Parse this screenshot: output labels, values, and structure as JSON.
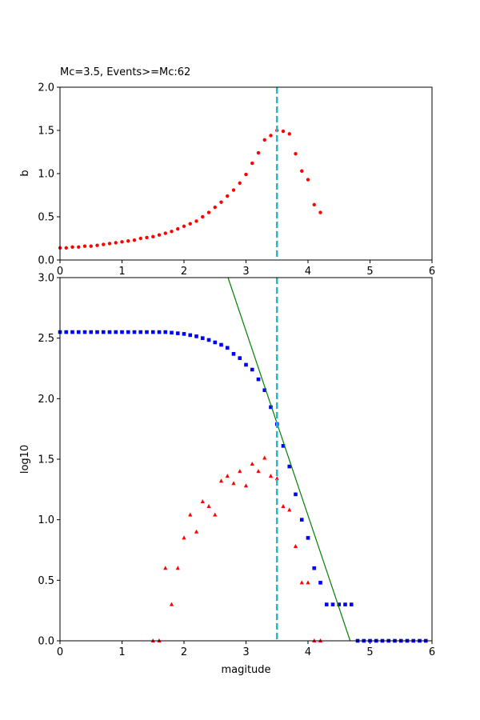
{
  "chart_data": [
    {
      "type": "scatter",
      "title": "Mc=3.5, Events>=Mc:62",
      "xlabel": "",
      "ylabel": "b",
      "xlim": [
        0,
        6
      ],
      "ylim": [
        0,
        2.0
      ],
      "xticks": [
        "0",
        "1",
        "2",
        "3",
        "4",
        "5",
        "6"
      ],
      "yticks": [
        "0.0",
        "0.5",
        "1.0",
        "1.5",
        "2.0"
      ],
      "grid": false,
      "vline": {
        "x": 3.5,
        "color": "#17becf",
        "style": "dashed"
      },
      "series": [
        {
          "color": "#ff0000",
          "marker": "circle",
          "x": [
            0.0,
            0.1,
            0.2,
            0.3,
            0.4,
            0.5,
            0.6,
            0.7,
            0.8,
            0.9,
            1.0,
            1.1,
            1.2,
            1.3,
            1.4,
            1.5,
            1.6,
            1.7,
            1.8,
            1.9,
            2.0,
            2.1,
            2.2,
            2.3,
            2.4,
            2.5,
            2.6,
            2.7,
            2.8,
            2.9,
            3.0,
            3.1,
            3.2,
            3.3,
            3.4,
            3.5,
            3.6,
            3.7,
            3.8,
            3.9,
            4.0,
            4.1,
            4.2
          ],
          "y": [
            0.14,
            0.14,
            0.15,
            0.15,
            0.16,
            0.16,
            0.17,
            0.18,
            0.19,
            0.2,
            0.21,
            0.22,
            0.23,
            0.25,
            0.26,
            0.27,
            0.29,
            0.31,
            0.33,
            0.36,
            0.39,
            0.42,
            0.45,
            0.5,
            0.55,
            0.61,
            0.67,
            0.74,
            0.81,
            0.89,
            0.99,
            1.12,
            1.24,
            1.39,
            1.44,
            1.5,
            1.49,
            1.46,
            1.23,
            1.03,
            0.93,
            0.64,
            0.55
          ]
        }
      ]
    },
    {
      "type": "scatter",
      "title": "",
      "xlabel": "magitude",
      "ylabel": "log10",
      "xlim": [
        0,
        6
      ],
      "ylim": [
        0,
        3.0
      ],
      "xticks": [
        "0",
        "1",
        "2",
        "3",
        "4",
        "5",
        "6"
      ],
      "yticks": [
        "0.0",
        "0.5",
        "1.0",
        "1.5",
        "2.0",
        "2.5",
        "3.0"
      ],
      "grid": false,
      "vline": {
        "x": 3.5,
        "color": "#17becf",
        "style": "dashed"
      },
      "fit_line": {
        "color": "#008000",
        "x": [
          2.71,
          4.68
        ],
        "y": [
          3.0,
          0.0
        ]
      },
      "series": [
        {
          "color": "#0000ff",
          "marker": "square",
          "x": [
            0.0,
            0.1,
            0.2,
            0.3,
            0.4,
            0.5,
            0.6,
            0.7,
            0.8,
            0.9,
            1.0,
            1.1,
            1.2,
            1.3,
            1.4,
            1.5,
            1.6,
            1.7,
            1.8,
            1.9,
            2.0,
            2.1,
            2.2,
            2.3,
            2.4,
            2.5,
            2.6,
            2.7,
            2.8,
            2.9,
            3.0,
            3.1,
            3.2,
            3.3,
            3.4,
            3.5,
            3.6,
            3.7,
            3.8,
            3.9,
            4.0,
            4.1,
            4.2,
            4.3,
            4.4,
            4.5,
            4.6,
            4.7,
            4.8,
            4.9,
            5.0,
            5.1,
            5.2,
            5.3,
            5.4,
            5.5,
            5.6,
            5.7,
            5.8,
            5.9
          ],
          "y": [
            2.55,
            2.55,
            2.55,
            2.55,
            2.55,
            2.55,
            2.55,
            2.55,
            2.55,
            2.55,
            2.55,
            2.55,
            2.55,
            2.55,
            2.55,
            2.55,
            2.55,
            2.55,
            2.545,
            2.54,
            2.535,
            2.525,
            2.515,
            2.5,
            2.485,
            2.465,
            2.445,
            2.42,
            2.37,
            2.335,
            2.28,
            2.24,
            2.16,
            2.07,
            1.93,
            1.79,
            1.61,
            1.44,
            1.21,
            1.0,
            0.85,
            0.6,
            0.48,
            0.3,
            0.3,
            0.3,
            0.3,
            0.3,
            0.0,
            0.0,
            0.0,
            0.0,
            0.0,
            0.0,
            0.0,
            0.0,
            0.0,
            0.0,
            0.0,
            0.0
          ]
        },
        {
          "color": "#ff0000",
          "marker": "triangle",
          "x": [
            1.5,
            1.6,
            1.7,
            1.8,
            1.9,
            2.0,
            2.1,
            2.2,
            2.3,
            2.4,
            2.5,
            2.6,
            2.7,
            2.8,
            2.9,
            3.0,
            3.1,
            3.2,
            3.3,
            3.4,
            3.5,
            3.6,
            3.7,
            3.8,
            3.9,
            4.0,
            4.1,
            4.2
          ],
          "y": [
            0.0,
            0.0,
            0.6,
            0.3,
            0.6,
            0.85,
            1.04,
            0.9,
            1.15,
            1.11,
            1.04,
            1.32,
            1.36,
            1.3,
            1.4,
            1.28,
            1.46,
            1.4,
            1.51,
            1.36,
            1.34,
            1.11,
            1.08,
            0.78,
            0.48,
            0.48,
            0.0,
            0.0
          ]
        }
      ]
    }
  ]
}
